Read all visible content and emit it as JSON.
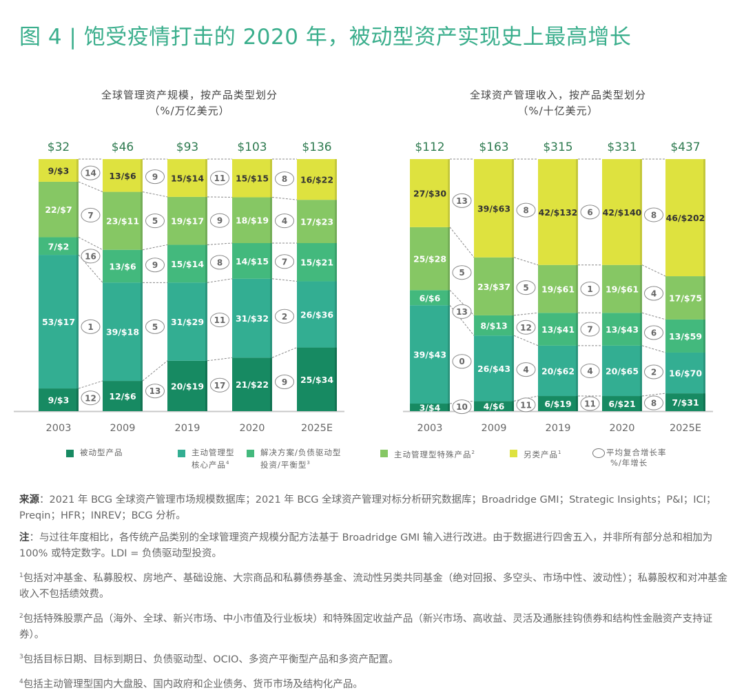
{
  "title": "图 4 | 饱受疫情打击的 2020 年，被动型资产实现史上最高增长",
  "colors": {
    "passive": "#178a62",
    "active_core": "#33ae92",
    "solutions": "#43b97d",
    "active_specialty": "#86c764",
    "alternatives": "#dee23f",
    "title": "#3aae8c",
    "total_label": "#2d7a4f"
  },
  "legend": [
    {
      "key": "passive",
      "label": "被动型产品",
      "label2": "",
      "sup": ""
    },
    {
      "key": "active_core",
      "label": "主动管理型",
      "label2": "核心产品",
      "sup": "4"
    },
    {
      "key": "solutions",
      "label": "解决方案/负债驱动型",
      "label2": "投资/平衡型",
      "sup": "3"
    },
    {
      "key": "active_specialty",
      "label": "主动管理型特殊产品",
      "label2": "",
      "sup": "2"
    },
    {
      "key": "alternatives",
      "label": "另类产品",
      "label2": "",
      "sup": "1"
    },
    {
      "key": "cagr",
      "label": "平均复合增长率",
      "label2": "%/年增长",
      "sup": ""
    }
  ],
  "chart_data": [
    {
      "type": "bar",
      "stacked": true,
      "normalized": true,
      "title": "全球管理资产规模，按产品类型划分",
      "subtitle": "（%/万亿美元）",
      "categories": [
        "2003",
        "2009",
        "2019",
        "2020",
        "2025E"
      ],
      "totals": [
        "$32",
        "$46",
        "$93",
        "$103",
        "$136"
      ],
      "series": [
        {
          "key": "passive",
          "name": "被动型产品",
          "pct": [
            9,
            12,
            20,
            21,
            25
          ],
          "usd": [
            3,
            6,
            19,
            22,
            34
          ]
        },
        {
          "key": "active_core",
          "name": "主动管理型核心产品",
          "pct": [
            53,
            39,
            31,
            31,
            26
          ],
          "usd": [
            17,
            18,
            29,
            32,
            36
          ]
        },
        {
          "key": "solutions",
          "name": "解决方案/负债驱动型投资/平衡型",
          "pct": [
            7,
            13,
            15,
            14,
            15
          ],
          "usd": [
            2,
            6,
            14,
            15,
            21
          ]
        },
        {
          "key": "active_specialty",
          "name": "主动管理型特殊产品",
          "pct": [
            22,
            23,
            19,
            18,
            17
          ],
          "usd": [
            7,
            11,
            17,
            19,
            23
          ]
        },
        {
          "key": "alternatives",
          "name": "另类产品",
          "pct": [
            9,
            13,
            15,
            15,
            16
          ],
          "usd": [
            3,
            6,
            14,
            15,
            22
          ]
        }
      ],
      "cagr": {
        "passive": [
          12,
          13,
          17,
          9
        ],
        "active_core": [
          1,
          5,
          11,
          2
        ],
        "solutions": [
          16,
          9,
          8,
          7
        ],
        "active_specialty": [
          7,
          5,
          9,
          4
        ],
        "alternatives": [
          14,
          9,
          11,
          8
        ]
      },
      "ylim": [
        0,
        100
      ]
    },
    {
      "type": "bar",
      "stacked": true,
      "normalized": true,
      "title": "全球资产管理收入，按产品类型划分",
      "subtitle": "（%/十亿美元）",
      "categories": [
        "2003",
        "2009",
        "2019",
        "2020",
        "2025E"
      ],
      "totals": [
        "$112",
        "$163",
        "$315",
        "$331",
        "$437"
      ],
      "series": [
        {
          "key": "passive",
          "name": "被动型产品",
          "pct": [
            3,
            4,
            6,
            6,
            7
          ],
          "usd": [
            4,
            6,
            19,
            21,
            31
          ]
        },
        {
          "key": "active_core",
          "name": "主动管理型核心产品",
          "pct": [
            39,
            26,
            20,
            20,
            16
          ],
          "usd": [
            43,
            43,
            62,
            65,
            70
          ]
        },
        {
          "key": "solutions",
          "name": "解决方案/负债驱动型投资/平衡型",
          "pct": [
            6,
            8,
            13,
            13,
            13
          ],
          "usd": [
            6,
            13,
            41,
            43,
            59
          ]
        },
        {
          "key": "active_specialty",
          "name": "主动管理型特殊产品",
          "pct": [
            25,
            23,
            19,
            19,
            17
          ],
          "usd": [
            28,
            37,
            61,
            61,
            75
          ]
        },
        {
          "key": "alternatives",
          "name": "另类产品",
          "pct": [
            27,
            39,
            42,
            42,
            46
          ],
          "usd": [
            30,
            63,
            132,
            140,
            202
          ]
        }
      ],
      "cagr": {
        "passive": [
          10,
          11,
          11,
          8
        ],
        "active_core": [
          0,
          4,
          4,
          2
        ],
        "solutions": [
          13,
          12,
          7,
          6
        ],
        "active_specialty": [
          5,
          5,
          1,
          4
        ],
        "alternatives": [
          13,
          8,
          6,
          8
        ]
      },
      "ylim": [
        0,
        100
      ]
    }
  ],
  "notes": {
    "source_label": "来源",
    "source_text": "：2021 年 BCG 全球资产管理市场规模数据库；2021 年 BCG 全球资产管理对标分析研究数据库；Broadridge GMI；Strategic Insights；P&I；ICI；Preqin；HFR；INREV；BCG 分析。",
    "note_label": "注",
    "note_text": "：与过往年度相比，各传统产品类别的全球管理资产规模分配方法基于 Broadridge GMI 输入进行改进。由于数据进行四舍五入，并非所有部分总和相加为 100% 或特定数字。LDI = 负债驱动型投资。",
    "footnotes": [
      {
        "n": "1",
        "text": "包括对冲基金、私募股权、房地产、基础设施、大宗商品和私募债券基金、流动性另类共同基金（绝对回报、多空头、市场中性、波动性）；私募股权和对冲基金收入不包括绩效费。"
      },
      {
        "n": "2",
        "text": "包括特殊股票产品（海外、全球、新兴市场、中小市值及行业板块）和特殊固定收益产品（新兴市场、高收益、灵活及通胀挂钩债券和结构性金融资产支持证券）。"
      },
      {
        "n": "3",
        "text": "包括目标日期、目标到期日、负债驱动型、OCIO、多资产平衡型产品和多资产配置。"
      },
      {
        "n": "4",
        "text": "包括主动管理型国内大盘股、国内政府和企业债务、货币市场及结构化产品。"
      }
    ]
  }
}
